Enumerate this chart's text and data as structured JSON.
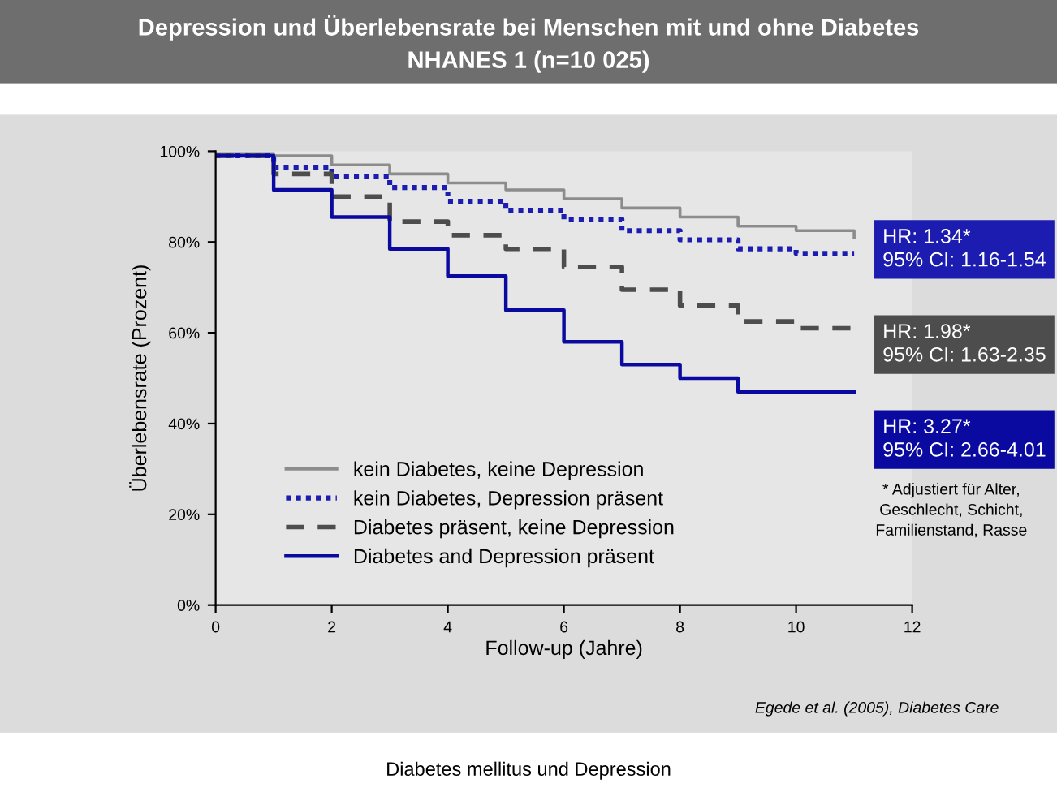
{
  "chart_data": {
    "type": "step",
    "title": "Depression und Überlebensrate bei Menschen mit und ohne Diabetes",
    "subtitle": "NHANES 1 (n=10 025)",
    "xlabel": "Follow-up (Jahre)",
    "ylabel": "Überlebensrate (Prozent)",
    "x": [
      0,
      1,
      2,
      3,
      4,
      5,
      6,
      7,
      8,
      9,
      10,
      11
    ],
    "series": [
      {
        "name": "kein Diabetes, keine Depression",
        "color": "#8c8c8c",
        "line_style": "solid",
        "values": [
          99.5,
          99,
          97,
          95,
          93,
          91.5,
          89.5,
          87.5,
          85.5,
          83.5,
          82.5,
          81
        ]
      },
      {
        "name": "kein Diabetes, Depression präsent",
        "color": "#1c1cb0",
        "line_style": "dotted",
        "values": [
          99,
          96.5,
          94.5,
          92,
          89,
          87,
          85,
          82.5,
          80.5,
          78.5,
          77.5,
          77.5
        ]
      },
      {
        "name": "Diabetes präsent, keine Depression",
        "color": "#4d4d4d",
        "line_style": "dashed",
        "values": [
          99,
          95,
          90,
          84.5,
          81.5,
          78.5,
          74.5,
          69.5,
          66,
          62.5,
          61,
          61
        ]
      },
      {
        "name": "Diabetes and Depression präsent",
        "color": "#0a0aa0",
        "line_style": "solid",
        "values": [
          99,
          91.5,
          85.5,
          78.5,
          72.5,
          65,
          58,
          53,
          50,
          47,
          47,
          47
        ]
      }
    ],
    "xlim": [
      0,
      12
    ],
    "ylim": [
      0,
      100
    ],
    "xticks": [
      0,
      2,
      4,
      6,
      8,
      10,
      12
    ],
    "yticks": [
      {
        "value": 0,
        "label": "0%"
      },
      {
        "value": 20,
        "label": "20%"
      },
      {
        "value": 40,
        "label": "40%"
      },
      {
        "value": 60,
        "label": "60%"
      },
      {
        "value": 80,
        "label": "80%"
      },
      {
        "value": 100,
        "label": "100%"
      }
    ],
    "grid": false,
    "legend": "bottom",
    "annotations": [
      "HR: 1.34*\n95% CI: 1.16-1.54",
      "HR: 1.98*\n95% CI: 1.63-2.35",
      "HR: 3.27*\n95% CI: 2.66-4.01",
      "* Adjustiert für Alter,\nGeschlecht, Schicht,\nFamilienstand, Rasse",
      "Egede et al. (2005), Diabetes Care",
      "Diabetes mellitus und Depression"
    ]
  }
}
